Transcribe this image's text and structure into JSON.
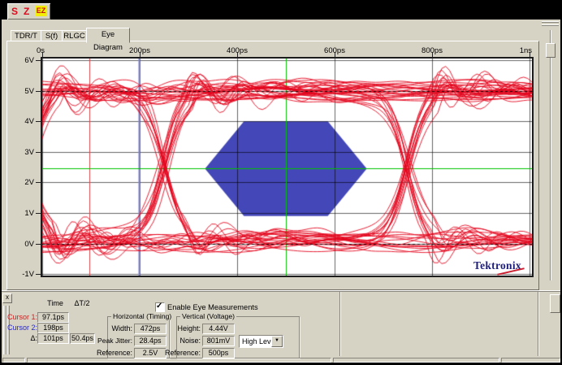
{
  "toolbar": {
    "buttons": [
      {
        "label": "S",
        "color": "#dd0a1e"
      },
      {
        "label": "Z",
        "color": "#dd0a1e"
      },
      {
        "label": "EZ",
        "color": "#cc1111",
        "bg": "#f2ee0a"
      }
    ]
  },
  "tabs": [
    {
      "label": "TDR/T",
      "selected": false
    },
    {
      "label": "S(f)",
      "selected": false
    },
    {
      "label": "RLGC",
      "selected": false
    },
    {
      "label": "Eye Diagram",
      "selected": true
    }
  ],
  "plot": {
    "logo": "Tektronix"
  },
  "chart_data": {
    "type": "eye-diagram",
    "x_range_ps": [
      0,
      1000
    ],
    "y_range_v": [
      -1,
      6
    ],
    "x_ticks": [
      {
        "label": "0s",
        "ps": 0
      },
      {
        "label": "200ps",
        "ps": 200
      },
      {
        "label": "400ps",
        "ps": 400
      },
      {
        "label": "600ps",
        "ps": 600
      },
      {
        "label": "800ps",
        "ps": 800
      },
      {
        "label": "1ns",
        "ps": 1000
      }
    ],
    "y_ticks": [
      {
        "label": "6V",
        "v": 6
      },
      {
        "label": "5V",
        "v": 5
      },
      {
        "label": "4V",
        "v": 4
      },
      {
        "label": "3V",
        "v": 3
      },
      {
        "label": "2V",
        "v": 2
      },
      {
        "label": "1V",
        "v": 1
      },
      {
        "label": "0V",
        "v": 0
      },
      {
        "label": "-1V",
        "v": -1
      }
    ],
    "grid": true,
    "grid_color": "rgba(0,0,0,0.6)",
    "trace_color": "rgba(228,4,28,0.88)",
    "mask": {
      "color": "#4347b8",
      "vertices_ps_v": [
        [
          334,
          2.45
        ],
        [
          414,
          4.0
        ],
        [
          586,
          4.0
        ],
        [
          666,
          2.45
        ],
        [
          586,
          0.9
        ],
        [
          414,
          0.9
        ]
      ]
    },
    "cursors": [
      {
        "name": "Cursor 1",
        "time_ps": 97.1,
        "color": "#d84848",
        "width": 1
      },
      {
        "name": "Cursor 2",
        "time_ps": 198,
        "color": "#8084d2",
        "width": 2
      }
    ],
    "reference_lines": {
      "vertical_ps": 500,
      "horizontal_v": 2.45,
      "color": "#00c400"
    },
    "level_lines_v": [
      5,
      0
    ],
    "eye": {
      "high_v": 5.0,
      "low_v": 0.08,
      "crossings_ps": [
        250,
        750
      ],
      "traces": 55,
      "rise_ps": 85,
      "jitter_ps": 26,
      "seed": 7,
      "measured": {
        "width_ps": 472,
        "peak_jitter_ps": 28.4,
        "height_v": 4.44,
        "noise_mv": 801
      }
    }
  },
  "measurements": {
    "close_label": "x",
    "headers": {
      "time": "Time",
      "dt2": "ΔT/2"
    },
    "cursor1": {
      "label": "Cursor 1:",
      "value": "97.1ps",
      "color": "#d42020"
    },
    "cursor2": {
      "label": "Cursor 2:",
      "value": "198ps",
      "color": "#2828cc"
    },
    "delta": {
      "label": "Δ:",
      "time": "101ps",
      "dt2": "50.4ps"
    },
    "enable": {
      "label": "Enable Eye Measurements",
      "checked": true,
      "check_glyph": "✓"
    },
    "horizontal": {
      "title": "Horizontal (Timing)",
      "rows": [
        {
          "label": "Width:",
          "value": "472ps"
        },
        {
          "label": "Peak Jitter:",
          "value": "28.4ps"
        },
        {
          "label": "Reference:",
          "value": "2.5V"
        }
      ]
    },
    "vertical": {
      "title": "Vertical (Voltage)",
      "rows": [
        {
          "label": "Height:",
          "value": "4.44V"
        },
        {
          "label": "Noise:",
          "value": "801mV"
        },
        {
          "label": "Reference:",
          "value": "500ps"
        }
      ],
      "level_select": "High Level",
      "dropdown_glyph": "▼"
    }
  }
}
